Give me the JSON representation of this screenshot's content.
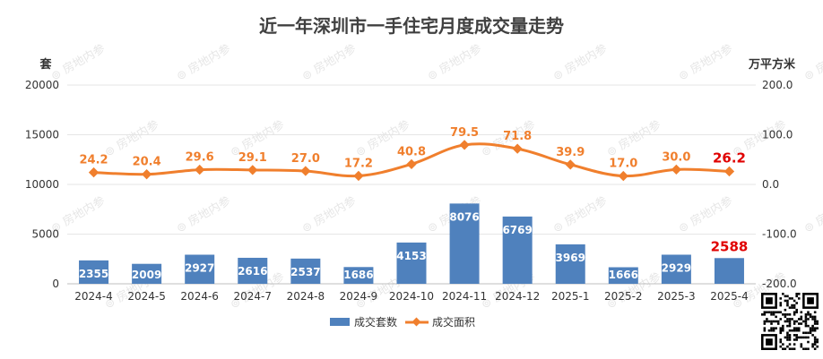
{
  "chart_data": {
    "type": "bar+line",
    "title": "近一年深圳市一手住宅月度成交量走势",
    "y_left_unit": "套",
    "y_right_unit": "万平方米",
    "y_left_ticks": [
      "0",
      "5000",
      "10000",
      "15000",
      "20000"
    ],
    "y_right_ticks": [
      "-200.0",
      "-100.0",
      "0.0",
      "100.0",
      "200.0"
    ],
    "y_left_range": [
      0,
      20000
    ],
    "y_right_range": [
      -200,
      200
    ],
    "categories": [
      "2024-4",
      "2024-5",
      "2024-6",
      "2024-7",
      "2024-8",
      "2024-9",
      "2024-10",
      "2024-11",
      "2024-12",
      "2025-1",
      "2025-2",
      "2025-3",
      "2025-4"
    ],
    "series": [
      {
        "name": "成交套数",
        "type": "bar",
        "axis": "left",
        "color": "#4f81bd",
        "values": [
          2355,
          2009,
          2927,
          2616,
          2537,
          1686,
          4153,
          8076,
          6769,
          3969,
          1666,
          2929,
          2588
        ],
        "labels": [
          "2355",
          "2009",
          "2927",
          "2616",
          "2537",
          "1686",
          "4153",
          "8076",
          "6769",
          "3969",
          "1666",
          "2929",
          "2588"
        ]
      },
      {
        "name": "成交面积",
        "type": "line",
        "axis": "right",
        "color": "#f07f2d",
        "values": [
          24.2,
          20.4,
          29.6,
          29.1,
          27.0,
          17.2,
          40.8,
          79.5,
          71.8,
          39.9,
          17.0,
          30.0,
          26.2
        ],
        "labels": [
          "24.2",
          "20.4",
          "29.6",
          "29.1",
          "27.0",
          "17.2",
          "40.8",
          "79.5",
          "71.8",
          "39.9",
          "17.0",
          "30.0",
          "26.2"
        ]
      }
    ],
    "highlight_color": "#e00000",
    "gridlines": true,
    "legend_position": "bottom"
  },
  "watermark": {
    "text": "房地内参"
  }
}
